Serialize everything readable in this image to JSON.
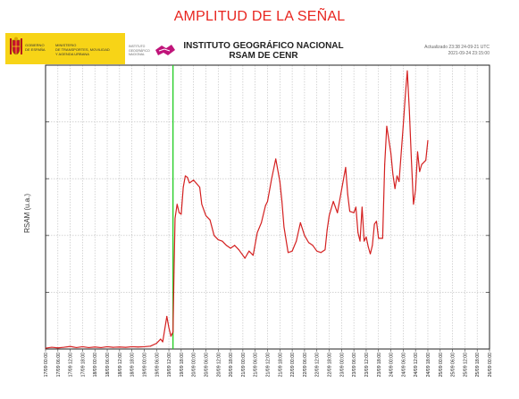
{
  "page": {
    "title": "AMPLITUD DE LA SEÑAL",
    "gov_logo": {
      "col1": "GOBIERNO\nDE ESPAÑA",
      "col2": "MINISTERIO\nDE TRANSPORTES, MOVILIDAD\nY AGENDA URBANA",
      "icon": "spain-coat-of-arms-icon",
      "color": "#f7d417"
    },
    "ign_logo": {
      "text": "INSTITUTO\nGEOGRÁFICO\nNACIONAL",
      "icon": "ign-logo-icon",
      "color": "#c0147a"
    }
  },
  "chart_data": {
    "type": "line",
    "title": "INSTITUTO GEOGRÁFICO NACIONAL",
    "subtitle": "RSAM DE CENR",
    "updated": "Actualizado 23:38 24-09-21 UTC",
    "range_text": "2021-09-24 23:15:00",
    "ylabel": "RSAM (u.a.)",
    "xlabel": "",
    "ylim": [
      0,
      100
    ],
    "grid": true,
    "colors": {
      "series": "#d42020",
      "event_line": "#22cc22",
      "grid": "#bbbbbb"
    },
    "x_tick_labels": [
      "17/09 00:00",
      "17/09 06:00",
      "17/09 12:00",
      "17/09 18:00",
      "18/09 00:00",
      "18/09 06:00",
      "18/09 12:00",
      "18/09 18:00",
      "19/09 00:00",
      "19/09 06:00",
      "19/09 12:00",
      "19/09 18:00",
      "20/09 00:00",
      "20/09 06:00",
      "20/09 12:00",
      "20/09 18:00",
      "21/09 00:00",
      "21/09 06:00",
      "21/09 12:00",
      "21/09 18:00",
      "22/09 00:00",
      "22/09 06:00",
      "22/09 12:00",
      "22/09 18:00",
      "23/09 00:00",
      "23/09 06:00",
      "23/09 12:00",
      "23/09 18:00",
      "24/09 00:00",
      "24/09 06:00",
      "24/09 12:00",
      "24/09 18:00",
      "25/09 00:00",
      "25/09 06:00",
      "25/09 12:00",
      "25/09 18:00",
      "26/09 00:00"
    ],
    "event_marker": "19/09 14:00",
    "series": [
      {
        "points": [
          [
            "17/09 00:00",
            0.3
          ],
          [
            "17/09 03:00",
            0.6
          ],
          [
            "17/09 06:00",
            0.4
          ],
          [
            "17/09 09:00",
            0.6
          ],
          [
            "17/09 12:00",
            0.9
          ],
          [
            "17/09 15:00",
            0.5
          ],
          [
            "17/09 18:00",
            0.8
          ],
          [
            "17/09 21:00",
            0.5
          ],
          [
            "18/09 00:00",
            0.7
          ],
          [
            "18/09 03:00",
            0.5
          ],
          [
            "18/09 06:00",
            0.8
          ],
          [
            "18/09 09:00",
            0.6
          ],
          [
            "18/09 12:00",
            0.7
          ],
          [
            "18/09 15:00",
            0.6
          ],
          [
            "18/09 18:00",
            0.8
          ],
          [
            "18/09 21:00",
            0.7
          ],
          [
            "19/09 00:00",
            0.8
          ],
          [
            "19/09 03:00",
            1.0
          ],
          [
            "19/09 06:00",
            2.0
          ],
          [
            "19/09 08:00",
            3.5
          ],
          [
            "19/09 09:00",
            2.5
          ],
          [
            "19/09 10:00",
            7.0
          ],
          [
            "19/09 11:00",
            11.5
          ],
          [
            "19/09 12:00",
            7.5
          ],
          [
            "19/09 13:00",
            4.5
          ],
          [
            "19/09 14:00",
            6.0
          ],
          [
            "19/09 14:30",
            27.0
          ],
          [
            "19/09 15:00",
            46.0
          ],
          [
            "19/09 16:00",
            51.0
          ],
          [
            "19/09 17:00",
            48.0
          ],
          [
            "19/09 18:00",
            47.5
          ],
          [
            "19/09 19:00",
            57.0
          ],
          [
            "19/09 20:00",
            61.0
          ],
          [
            "19/09 21:00",
            60.5
          ],
          [
            "19/09 22:00",
            58.5
          ],
          [
            "20/09 00:00",
            59.5
          ],
          [
            "20/09 03:00",
            57.0
          ],
          [
            "20/09 04:00",
            51.0
          ],
          [
            "20/09 06:00",
            47.0
          ],
          [
            "20/09 08:00",
            45.5
          ],
          [
            "20/09 10:00",
            40.0
          ],
          [
            "20/09 12:00",
            38.5
          ],
          [
            "20/09 14:00",
            38.0
          ],
          [
            "20/09 16:00",
            36.5
          ],
          [
            "20/09 18:00",
            35.5
          ],
          [
            "20/09 20:00",
            36.5
          ],
          [
            "20/09 22:00",
            35.0
          ],
          [
            "21/09 00:00",
            33.0
          ],
          [
            "21/09 01:00",
            32.0
          ],
          [
            "21/09 03:00",
            34.5
          ],
          [
            "21/09 05:00",
            33.0
          ],
          [
            "21/09 07:00",
            41.0
          ],
          [
            "21/09 09:00",
            44.5
          ],
          [
            "21/09 11:00",
            50.5
          ],
          [
            "21/09 12:00",
            52.0
          ],
          [
            "21/09 14:00",
            60.0
          ],
          [
            "21/09 16:00",
            67.0
          ],
          [
            "21/09 18:00",
            59.0
          ],
          [
            "21/09 19:00",
            52.0
          ],
          [
            "21/09 20:00",
            43.0
          ],
          [
            "21/09 22:00",
            34.0
          ],
          [
            "22/09 00:00",
            34.5
          ],
          [
            "22/09 02:00",
            38.0
          ],
          [
            "22/09 04:00",
            44.5
          ],
          [
            "22/09 06:00",
            40.0
          ],
          [
            "22/09 08:00",
            37.5
          ],
          [
            "22/09 10:00",
            36.5
          ],
          [
            "22/09 12:00",
            34.5
          ],
          [
            "22/09 14:00",
            34.0
          ],
          [
            "22/09 16:00",
            35.0
          ],
          [
            "22/09 17:00",
            42.0
          ],
          [
            "22/09 18:00",
            47.0
          ],
          [
            "22/09 20:00",
            52.0
          ],
          [
            "22/09 22:00",
            48.0
          ],
          [
            "23/09 00:00",
            56.0
          ],
          [
            "23/09 02:00",
            64.0
          ],
          [
            "23/09 03:00",
            54.5
          ],
          [
            "23/09 04:00",
            48.5
          ],
          [
            "23/09 06:00",
            48.0
          ],
          [
            "23/09 07:00",
            50.0
          ],
          [
            "23/09 08:00",
            41.0
          ],
          [
            "23/09 09:00",
            38.0
          ],
          [
            "23/09 10:00",
            50.0
          ],
          [
            "23/09 11:00",
            38.0
          ],
          [
            "23/09 12:00",
            39.5
          ],
          [
            "23/09 13:00",
            36.0
          ],
          [
            "23/09 14:00",
            33.5
          ],
          [
            "23/09 15:00",
            36.5
          ],
          [
            "23/09 16:00",
            44.0
          ],
          [
            "23/09 17:00",
            45.0
          ],
          [
            "23/09 18:00",
            39.0
          ],
          [
            "23/09 20:00",
            39.0
          ],
          [
            "23/09 21:00",
            65.0
          ],
          [
            "23/09 22:00",
            78.5
          ],
          [
            "24/09 00:00",
            69.0
          ],
          [
            "24/09 01:00",
            61.5
          ],
          [
            "24/09 02:00",
            56.5
          ],
          [
            "24/09 03:00",
            61.0
          ],
          [
            "24/09 04:00",
            59.0
          ],
          [
            "24/09 06:00",
            78.5
          ],
          [
            "24/09 07:00",
            89.0
          ],
          [
            "24/09 08:00",
            98.0
          ],
          [
            "24/09 09:00",
            84.0
          ],
          [
            "24/09 10:00",
            66.5
          ],
          [
            "24/09 11:00",
            51.0
          ],
          [
            "24/09 12:00",
            56.0
          ],
          [
            "24/09 13:00",
            69.5
          ],
          [
            "24/09 14:00",
            62.5
          ],
          [
            "24/09 15:00",
            65.0
          ],
          [
            "24/09 17:00",
            66.5
          ],
          [
            "24/09 18:00",
            73.5
          ]
        ]
      }
    ]
  }
}
